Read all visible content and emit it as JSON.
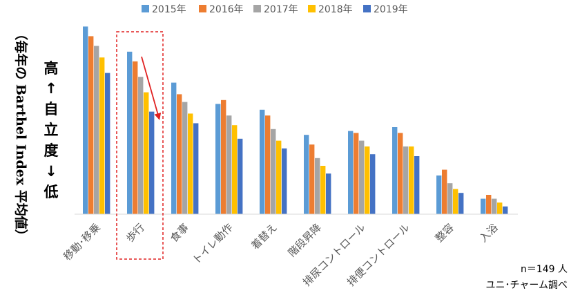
{
  "chart_data": {
    "type": "bar",
    "title": "",
    "xlabel": "",
    "ylabel": "（毎年の Barthel Index 平均値）",
    "ylim": [
      0,
      100
    ],
    "grid": false,
    "legend_position": "top",
    "categories": [
      "移動･移乗",
      "歩行",
      "食事",
      "トイレ動作",
      "着替え",
      "階段昇降",
      "排尿コントロール",
      "排便コントロール",
      "整容",
      "入浴"
    ],
    "series": [
      {
        "name": "2015年",
        "color": "#5B9BD5",
        "values": [
          97,
          84,
          68,
          57,
          54,
          41,
          43,
          45,
          20,
          8
        ]
      },
      {
        "name": "2016年",
        "color": "#ED7D31",
        "values": [
          92,
          79,
          62,
          59,
          51,
          36,
          42,
          42,
          23,
          10
        ]
      },
      {
        "name": "2017年",
        "color": "#A5A5A5",
        "values": [
          87,
          71,
          58,
          51,
          44,
          29,
          38,
          35,
          16,
          8
        ]
      },
      {
        "name": "2018年",
        "color": "#FFC000",
        "values": [
          81,
          63,
          52,
          46,
          38,
          25,
          35,
          35,
          13,
          6
        ]
      },
      {
        "name": "2019年",
        "color": "#4472C4",
        "values": [
          73,
          53,
          47,
          39,
          34,
          21,
          31,
          30,
          11,
          4
        ]
      }
    ],
    "axis_annotation": {
      "high": "高",
      "up_arrow": "↑",
      "word_chars": [
        "自",
        "立",
        "度"
      ],
      "down_arrow": "↓",
      "low": "低"
    },
    "highlight_category": "歩行",
    "notes": [
      "n＝149 人",
      "ユニ･チャーム調べ"
    ]
  },
  "colors": {
    "highlight_box": "#E02020",
    "arrow": "#E02020",
    "axis": "#D9D9D9"
  }
}
